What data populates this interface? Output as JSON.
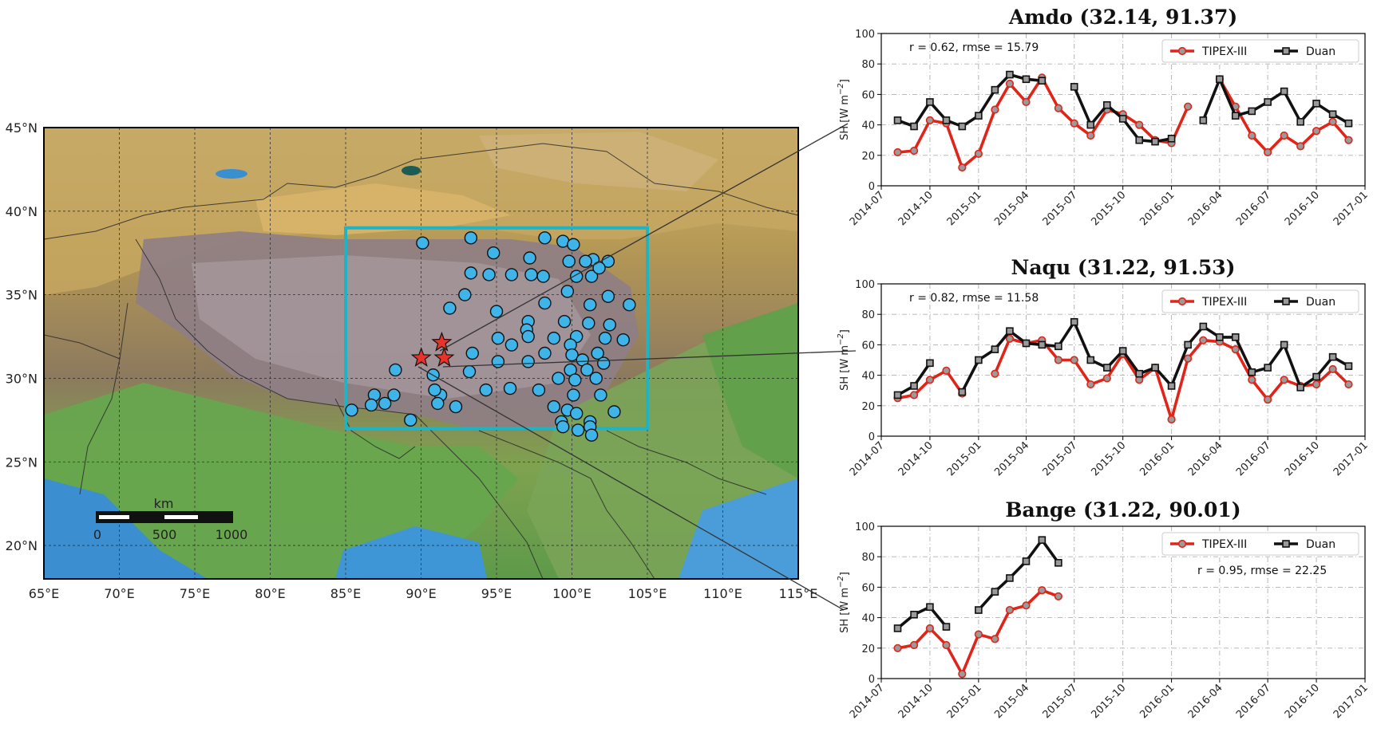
{
  "map": {
    "lon_ticks": [
      "65°E",
      "70°E",
      "75°E",
      "80°E",
      "85°E",
      "90°E",
      "95°E",
      "100°E",
      "105°E",
      "110°E",
      "115°E"
    ],
    "lat_ticks": [
      "20°N",
      "25°N",
      "30°N",
      "35°N",
      "40°N",
      "45°N"
    ],
    "extent": {
      "lon": [
        65,
        115
      ],
      "lat": [
        18,
        45
      ]
    },
    "scale_bar": {
      "unit": "km",
      "labels": [
        "0",
        "500",
        "1000"
      ]
    },
    "study_region": {
      "lon": [
        85,
        105
      ],
      "lat": [
        27,
        39
      ],
      "color": "#1fb3c4"
    },
    "station_color": "#3fb4e8",
    "highlight_color": "#e8322a",
    "stations": [
      [
        90.1,
        38.1
      ],
      [
        93.3,
        38.4
      ],
      [
        98.2,
        38.4
      ],
      [
        99.4,
        38.2
      ],
      [
        100.1,
        38.0
      ],
      [
        101.4,
        37.1
      ],
      [
        102.4,
        37.0
      ],
      [
        94.8,
        37.5
      ],
      [
        97.2,
        37.2
      ],
      [
        99.8,
        37.0
      ],
      [
        100.9,
        37.0
      ],
      [
        93.3,
        36.3
      ],
      [
        94.5,
        36.2
      ],
      [
        96.0,
        36.2
      ],
      [
        97.3,
        36.2
      ],
      [
        98.1,
        36.1
      ],
      [
        100.3,
        36.1
      ],
      [
        101.3,
        36.1
      ],
      [
        101.8,
        36.6
      ],
      [
        92.9,
        35.0
      ],
      [
        99.7,
        35.2
      ],
      [
        102.4,
        34.9
      ],
      [
        103.8,
        34.4
      ],
      [
        91.9,
        34.2
      ],
      [
        95.0,
        34.0
      ],
      [
        98.2,
        34.5
      ],
      [
        101.2,
        34.4
      ],
      [
        97.1,
        33.4
      ],
      [
        99.5,
        33.4
      ],
      [
        101.1,
        33.3
      ],
      [
        102.5,
        33.2
      ],
      [
        97.0,
        32.9
      ],
      [
        95.1,
        32.4
      ],
      [
        97.1,
        32.5
      ],
      [
        98.8,
        32.4
      ],
      [
        100.3,
        32.5
      ],
      [
        102.2,
        32.4
      ],
      [
        103.4,
        32.3
      ],
      [
        96.0,
        32.0
      ],
      [
        99.9,
        32.0
      ],
      [
        93.4,
        31.5
      ],
      [
        98.2,
        31.5
      ],
      [
        100.0,
        31.4
      ],
      [
        101.7,
        31.5
      ],
      [
        100.7,
        31.1
      ],
      [
        102.1,
        30.9
      ],
      [
        95.1,
        31.0
      ],
      [
        97.1,
        31.0
      ],
      [
        99.9,
        30.5
      ],
      [
        101.0,
        30.5
      ],
      [
        93.2,
        30.4
      ],
      [
        88.3,
        30.5
      ],
      [
        90.8,
        30.2
      ],
      [
        99.1,
        30.0
      ],
      [
        100.2,
        29.9
      ],
      [
        101.6,
        30.0
      ],
      [
        94.3,
        29.3
      ],
      [
        95.9,
        29.4
      ],
      [
        97.8,
        29.3
      ],
      [
        86.9,
        29.0
      ],
      [
        88.2,
        29.0
      ],
      [
        91.3,
        29.0
      ],
      [
        90.9,
        29.3
      ],
      [
        100.1,
        29.0
      ],
      [
        101.9,
        29.0
      ],
      [
        86.7,
        28.4
      ],
      [
        87.6,
        28.5
      ],
      [
        91.1,
        28.5
      ],
      [
        92.3,
        28.3
      ],
      [
        98.8,
        28.3
      ],
      [
        99.7,
        28.1
      ],
      [
        100.3,
        27.9
      ],
      [
        102.8,
        28.0
      ],
      [
        85.4,
        28.1
      ],
      [
        89.3,
        27.5
      ],
      [
        99.3,
        27.4
      ],
      [
        101.2,
        27.4
      ],
      [
        99.4,
        27.1
      ],
      [
        100.4,
        26.9
      ],
      [
        101.2,
        27.1
      ],
      [
        101.3,
        26.6
      ]
    ],
    "highlight_stations": [
      [
        91.37,
        32.14
      ],
      [
        91.53,
        31.22
      ],
      [
        90.01,
        31.22
      ]
    ]
  },
  "panels": [
    {
      "title": "Amdo (32.14, 91.37)",
      "stat": "r = 0.62, rmse = 15.79",
      "stat_pos": "top-left",
      "legend": [
        "TIPEX-III",
        "Duan"
      ],
      "ylabel": "SH [W m",
      "ylabel_sup": "−2",
      "ylabel_end": "]",
      "yticks": [
        "0",
        "20",
        "40",
        "60",
        "80",
        "100"
      ],
      "xticks": [
        "2014-07",
        "2014-10",
        "2015-01",
        "2015-04",
        "2015-07",
        "2015-10",
        "2016-01",
        "2016-04",
        "2016-07",
        "2016-10",
        "2017-01"
      ]
    },
    {
      "title": "Naqu (31.22, 91.53)",
      "stat": "r = 0.82, rmse = 11.58",
      "stat_pos": "top-left",
      "legend": [
        "TIPEX-III",
        "Duan"
      ],
      "ylabel": "SH [W m",
      "ylabel_sup": "−2",
      "ylabel_end": "]",
      "yticks": [
        "0",
        "20",
        "40",
        "60",
        "80",
        "100"
      ],
      "xticks": [
        "2014-07",
        "2014-10",
        "2015-01",
        "2015-04",
        "2015-07",
        "2015-10",
        "2016-01",
        "2016-04",
        "2016-07",
        "2016-10",
        "2017-01"
      ]
    },
    {
      "title": "Bange (31.22, 90.01)",
      "stat": "r = 0.95, rmse = 22.25",
      "stat_pos": "upper-right",
      "legend": [
        "TIPEX-III",
        "Duan"
      ],
      "ylabel": "SH [W m",
      "ylabel_sup": "−2",
      "ylabel_end": "]",
      "yticks": [
        "0",
        "20",
        "40",
        "60",
        "80",
        "100"
      ],
      "xticks": [
        "2014-07",
        "2014-10",
        "2015-01",
        "2015-04",
        "2015-07",
        "2015-10",
        "2016-01",
        "2016-04",
        "2016-07",
        "2016-10",
        "2017-01"
      ]
    }
  ],
  "chart_data": [
    {
      "type": "line",
      "title": "Amdo (32.14, 91.37)",
      "ylabel": "SH [W m−2]",
      "ylim": [
        0,
        100
      ],
      "xlim": [
        "2014-07",
        "2017-01"
      ],
      "grid": true,
      "legend": "top-right",
      "x": [
        "2014-08",
        "2014-09",
        "2014-10",
        "2014-11",
        "2014-12",
        "2015-01",
        "2015-02",
        "2015-03",
        "2015-04",
        "2015-05",
        "2015-06",
        "2015-07",
        "2015-08",
        "2015-09",
        "2015-10",
        "2015-11",
        "2015-12",
        "2016-01",
        "2016-02",
        "2016-03",
        "2016-04",
        "2016-05",
        "2016-06",
        "2016-07",
        "2016-08",
        "2016-09",
        "2016-10",
        "2016-11",
        "2016-12"
      ],
      "series": [
        {
          "name": "TIPEX-III",
          "color": "#e02418",
          "values": [
            22,
            23,
            43,
            41,
            12,
            21,
            50,
            67,
            55,
            71,
            51,
            41,
            33,
            50,
            47,
            40,
            30,
            28,
            52,
            null,
            70,
            52,
            33,
            22,
            33,
            26,
            36,
            42,
            30
          ]
        },
        {
          "name": "Duan",
          "color": "#111111",
          "values": [
            43,
            39,
            55,
            43,
            39,
            46,
            63,
            73,
            70,
            69,
            null,
            65,
            40,
            53,
            44,
            30,
            29,
            31,
            null,
            43,
            70,
            46,
            49,
            55,
            62,
            42,
            54,
            47,
            41
          ]
        }
      ]
    },
    {
      "type": "line",
      "title": "Naqu (31.22, 91.53)",
      "ylabel": "SH [W m−2]",
      "ylim": [
        0,
        100
      ],
      "xlim": [
        "2014-07",
        "2017-01"
      ],
      "grid": true,
      "legend": "top-right",
      "x": [
        "2014-08",
        "2014-09",
        "2014-10",
        "2014-11",
        "2014-12",
        "2015-01",
        "2015-02",
        "2015-03",
        "2015-04",
        "2015-05",
        "2015-06",
        "2015-07",
        "2015-08",
        "2015-09",
        "2015-10",
        "2015-11",
        "2015-12",
        "2016-01",
        "2016-02",
        "2016-03",
        "2016-04",
        "2016-05",
        "2016-06",
        "2016-07",
        "2016-08",
        "2016-09",
        "2016-10",
        "2016-11",
        "2016-12"
      ],
      "series": [
        {
          "name": "TIPEX-III",
          "color": "#e02418",
          "values": [
            25,
            27,
            37,
            43,
            28,
            null,
            41,
            64,
            61,
            63,
            50,
            50,
            34,
            38,
            54,
            37,
            45,
            11,
            51,
            63,
            62,
            57,
            37,
            24,
            37,
            33,
            34,
            44,
            34
          ]
        },
        {
          "name": "Duan",
          "color": "#111111",
          "values": [
            27,
            33,
            48,
            null,
            29,
            50,
            57,
            69,
            61,
            60,
            59,
            75,
            50,
            45,
            56,
            41,
            45,
            33,
            60,
            72,
            65,
            65,
            42,
            45,
            60,
            32,
            39,
            52,
            46
          ]
        }
      ]
    },
    {
      "type": "line",
      "title": "Bange (31.22, 90.01)",
      "ylabel": "SH [W m−2]",
      "ylim": [
        0,
        100
      ],
      "xlim": [
        "2014-07",
        "2017-01"
      ],
      "grid": true,
      "legend": "top-right",
      "x": [
        "2014-08",
        "2014-09",
        "2014-10",
        "2014-11",
        "2014-12",
        "2015-01",
        "2015-02",
        "2015-03",
        "2015-04",
        "2015-05",
        "2015-06"
      ],
      "series": [
        {
          "name": "TIPEX-III",
          "color": "#e02418",
          "values": [
            20,
            22,
            33,
            22,
            3,
            29,
            26,
            45,
            48,
            58,
            54
          ]
        },
        {
          "name": "Duan",
          "color": "#111111",
          "values": [
            33,
            42,
            47,
            34,
            null,
            45,
            57,
            66,
            77,
            91,
            76
          ]
        }
      ]
    }
  ]
}
